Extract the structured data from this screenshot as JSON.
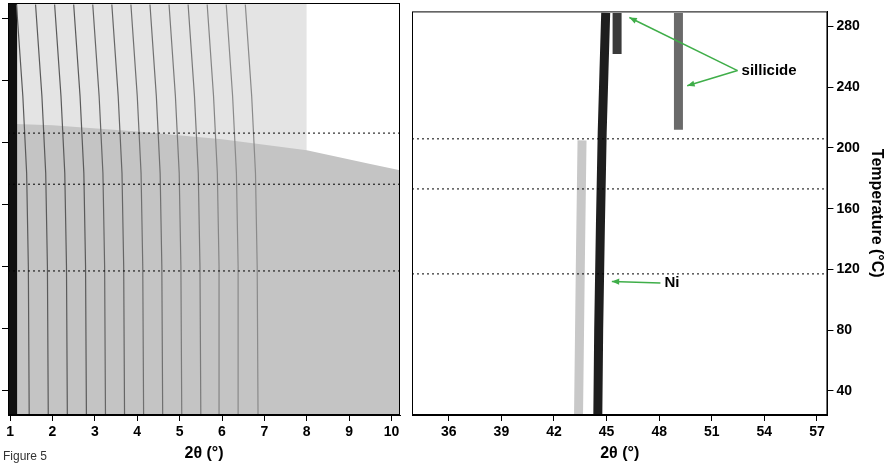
{
  "caption": "Figure 5",
  "chart_data": [
    {
      "type": "line",
      "x_label": "2θ (°)",
      "xlim": [
        0.95,
        10.2
      ],
      "xticks": [
        1,
        2,
        3,
        4,
        5,
        6,
        7,
        8,
        9,
        10
      ],
      "ylim": [
        24,
        290
      ],
      "yticks": [
        40,
        80,
        120,
        160,
        200,
        240,
        280
      ],
      "tick_labels": "x",
      "grid": false,
      "ref_lines": [
        206,
        173,
        117
      ],
      "series": [
        {
          "type": "area",
          "color": "#e4e4e4",
          "x": [
            0.95,
            3,
            5,
            7,
            8
          ],
          "values": [
            290,
            290,
            290,
            290,
            290
          ]
        },
        {
          "type": "area",
          "color": "#c4c4c4",
          "x": [
            0.95,
            2,
            4,
            6,
            8,
            9.5,
            10.2
          ],
          "values": [
            212,
            211,
            207,
            202,
            195,
            186,
            182
          ]
        },
        {
          "type": "area",
          "color": "#111111",
          "x": [
            0.95,
            1.17
          ],
          "values": [
            290,
            290
          ]
        },
        {
          "color": "#5a5a5a",
          "line_style": "solid",
          "x": [
            1.45,
            1.43,
            1.39,
            1.3,
            1.15
          ],
          "values": [
            24,
            120,
            180,
            230,
            289
          ]
        },
        {
          "color": "#5a5a5a",
          "line_style": "solid",
          "x": [
            1.9,
            1.88,
            1.84,
            1.75,
            1.6
          ],
          "values": [
            24,
            120,
            180,
            230,
            289
          ]
        },
        {
          "color": "#5a5a5a",
          "line_style": "solid",
          "x": [
            2.35,
            2.33,
            2.29,
            2.2,
            2.05
          ],
          "values": [
            24,
            120,
            180,
            230,
            289
          ]
        },
        {
          "color": "#5a5a5a",
          "line_style": "solid",
          "x": [
            2.8,
            2.78,
            2.74,
            2.65,
            2.5
          ],
          "values": [
            24,
            120,
            180,
            230,
            289
          ]
        },
        {
          "color": "#666666",
          "line_style": "solid",
          "x": [
            3.25,
            3.23,
            3.19,
            3.1,
            2.95
          ],
          "values": [
            24,
            120,
            180,
            230,
            289
          ]
        },
        {
          "color": "#666666",
          "line_style": "solid",
          "x": [
            3.7,
            3.68,
            3.64,
            3.55,
            3.4
          ],
          "values": [
            24,
            120,
            180,
            230,
            289
          ]
        },
        {
          "color": "#707070",
          "line_style": "solid",
          "x": [
            4.15,
            4.13,
            4.09,
            4.0,
            3.85
          ],
          "values": [
            24,
            120,
            180,
            230,
            289
          ]
        },
        {
          "color": "#707070",
          "line_style": "solid",
          "x": [
            4.6,
            4.58,
            4.54,
            4.45,
            4.3
          ],
          "values": [
            24,
            120,
            180,
            230,
            289
          ]
        },
        {
          "color": "#7a7a7a",
          "line_style": "solid",
          "x": [
            5.05,
            5.03,
            4.99,
            4.9,
            4.75
          ],
          "values": [
            24,
            120,
            180,
            230,
            289
          ]
        },
        {
          "color": "#7a7a7a",
          "line_style": "solid",
          "x": [
            5.5,
            5.48,
            5.44,
            5.35,
            5.2
          ],
          "values": [
            24,
            120,
            180,
            230,
            289
          ]
        },
        {
          "color": "#858585",
          "line_style": "solid",
          "x": [
            5.95,
            5.93,
            5.89,
            5.8,
            5.65
          ],
          "values": [
            24,
            120,
            180,
            230,
            289
          ]
        },
        {
          "color": "#8a8a8a",
          "line_style": "solid",
          "x": [
            6.4,
            6.38,
            6.34,
            6.25,
            6.1
          ],
          "values": [
            24,
            120,
            180,
            230,
            289
          ]
        },
        {
          "color": "#8a8a8a",
          "line_style": "solid",
          "x": [
            6.85,
            6.83,
            6.79,
            6.7,
            6.55
          ],
          "values": [
            24,
            120,
            180,
            230,
            289
          ]
        }
      ]
    },
    {
      "type": "line",
      "x_label": "2θ (°)",
      "y_label": "Temperature (°C)",
      "xlim": [
        33.9,
        57.6
      ],
      "xticks": [
        36,
        39,
        42,
        45,
        48,
        51,
        54,
        57
      ],
      "ylim": [
        24,
        290
      ],
      "yticks": [
        40,
        80,
        120,
        160,
        200,
        240,
        280
      ],
      "grid": false,
      "ref_lines": [
        206,
        173,
        117
      ],
      "series": [
        {
          "color": "#c8c8c8",
          "line_style": "bold",
          "x": [
            43.4,
            43.5,
            43.6
          ],
          "values": [
            24,
            120,
            205
          ]
        },
        {
          "color": "#1e1e1e",
          "line_style": "bold",
          "x": [
            44.5,
            44.55,
            44.65,
            44.75,
            44.85,
            44.95
          ],
          "values": [
            24,
            80,
            150,
            210,
            250,
            289
          ]
        },
        {
          "color": "#3a3a3a",
          "line_style": "bold",
          "x": [
            45.6,
            45.6
          ],
          "values": [
            262,
            289
          ]
        },
        {
          "color": "#6a6a6a",
          "line_style": "bold",
          "x": [
            49.1,
            49.1
          ],
          "values": [
            212,
            289
          ]
        }
      ],
      "annotations": [
        {
          "text": "sillicide",
          "x": 52.7,
          "y": 251,
          "color": "#3fae49",
          "arrows": [
            {
              "x": 46.3,
              "y": 286
            },
            {
              "x": 49.6,
              "y": 241
            }
          ]
        },
        {
          "text": "Ni",
          "x": 48.3,
          "y": 111,
          "color": "#3fae49",
          "arrows": [
            {
              "x": 45.3,
              "y": 112
            }
          ]
        }
      ]
    }
  ]
}
